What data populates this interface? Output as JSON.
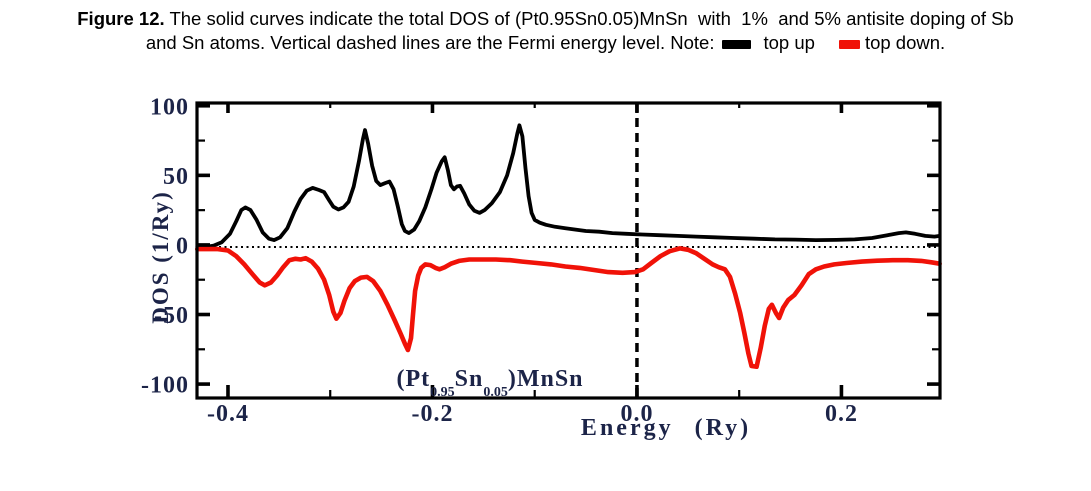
{
  "caption": {
    "line1_bold": "Figure 12.",
    "line1_rest": " The solid curves indicate the total DOS of (Pt0.95Sn0.05)MnSn  with  1%  and 5% antisite doping of Sb",
    "line2_text": "and Sn atoms. Vertical dashed lines are the Fermi energy level. Note:",
    "legend": [
      {
        "label": "top up",
        "color": "#000000"
      },
      {
        "label": "top down.",
        "color": "#f01208"
      }
    ]
  },
  "colors": {
    "spin_up_curve": "#000000",
    "spin_down_curve": "#f01208",
    "axis_text": "#1c2448",
    "axis_line": "#000000",
    "background": "#ffffff"
  },
  "chart_data": {
    "type": "line",
    "title": "",
    "xlabel": "Energy (Ry)",
    "ylabel": "DOS (1/Ry)",
    "xlim": [
      -0.4303,
      0.2964
    ],
    "ylim": [
      -110,
      102
    ],
    "grid": false,
    "x_ticks_major": [
      -0.4,
      -0.2,
      0.0,
      0.2
    ],
    "x_tick_labels": [
      "-0.4",
      "-0.2",
      "0.0",
      "0.2"
    ],
    "x_ticks_minor": [
      -0.3,
      -0.1,
      0.1
    ],
    "y_ticks_major": [
      100,
      50,
      0,
      -50,
      -100
    ],
    "y_tick_labels": [
      "100",
      "50",
      "0",
      "-50",
      "-100"
    ],
    "y_ticks_minor": [
      75,
      25,
      -25,
      -75
    ],
    "fermi_line_x": 0.0,
    "zero_line_y": -1.5,
    "annotation": {
      "prefix": "(Pt",
      "sub1": "0.95",
      "mid": "Sn",
      "sub2": "0.05",
      "suffix": ")MnSn"
    },
    "series": [
      {
        "name": "top up",
        "color": "#000000",
        "points": [
          [
            -0.43,
            -1.5
          ],
          [
            -0.422,
            -1.5
          ],
          [
            -0.414,
            -0.5
          ],
          [
            -0.406,
            2
          ],
          [
            -0.398,
            8
          ],
          [
            -0.392,
            17
          ],
          [
            -0.387,
            25
          ],
          [
            -0.383,
            27
          ],
          [
            -0.378,
            25
          ],
          [
            -0.372,
            18
          ],
          [
            -0.366,
            9
          ],
          [
            -0.36,
            4.5
          ],
          [
            -0.355,
            3.5
          ],
          [
            -0.349,
            5.5
          ],
          [
            -0.342,
            12
          ],
          [
            -0.335,
            24
          ],
          [
            -0.329,
            33
          ],
          [
            -0.323,
            39
          ],
          [
            -0.317,
            41
          ],
          [
            -0.311,
            39.5
          ],
          [
            -0.306,
            38
          ],
          [
            -0.301,
            32
          ],
          [
            -0.297,
            27.5
          ],
          [
            -0.292,
            25.5
          ],
          [
            -0.287,
            27
          ],
          [
            -0.282,
            31
          ],
          [
            -0.277,
            42
          ],
          [
            -0.272,
            60
          ],
          [
            -0.268,
            76
          ],
          [
            -0.266,
            82.5
          ],
          [
            -0.263,
            73
          ],
          [
            -0.259,
            57
          ],
          [
            -0.255,
            46
          ],
          [
            -0.251,
            43
          ],
          [
            -0.246,
            44.5
          ],
          [
            -0.242,
            45.5
          ],
          [
            -0.238,
            40
          ],
          [
            -0.234,
            28
          ],
          [
            -0.23,
            15
          ],
          [
            -0.227,
            10
          ],
          [
            -0.223,
            8.5
          ],
          [
            -0.218,
            11
          ],
          [
            -0.213,
            17
          ],
          [
            -0.207,
            27
          ],
          [
            -0.201,
            40
          ],
          [
            -0.196,
            52
          ],
          [
            -0.191,
            60
          ],
          [
            -0.188,
            63
          ],
          [
            -0.185,
            54
          ],
          [
            -0.182,
            43
          ],
          [
            -0.179,
            40
          ],
          [
            -0.176,
            42
          ],
          [
            -0.173,
            42.5
          ],
          [
            -0.169,
            37
          ],
          [
            -0.164,
            29
          ],
          [
            -0.159,
            24.5
          ],
          [
            -0.154,
            23
          ],
          [
            -0.149,
            25
          ],
          [
            -0.142,
            30
          ],
          [
            -0.134,
            38
          ],
          [
            -0.127,
            50
          ],
          [
            -0.121,
            66
          ],
          [
            -0.117,
            80
          ],
          [
            -0.115,
            86
          ],
          [
            -0.112,
            78
          ],
          [
            -0.109,
            55
          ],
          [
            -0.106,
            35
          ],
          [
            -0.103,
            23
          ],
          [
            -0.1,
            18
          ],
          [
            -0.095,
            16
          ],
          [
            -0.089,
            14.5
          ],
          [
            -0.08,
            13
          ],
          [
            -0.07,
            12
          ],
          [
            -0.06,
            11
          ],
          [
            -0.05,
            10
          ],
          [
            -0.037,
            9.5
          ],
          [
            -0.024,
            8.5
          ],
          [
            -0.01,
            8
          ],
          [
            0.005,
            7.5
          ],
          [
            0.022,
            7
          ],
          [
            0.04,
            6.5
          ],
          [
            0.058,
            6
          ],
          [
            0.076,
            5.5
          ],
          [
            0.095,
            5
          ],
          [
            0.115,
            4.5
          ],
          [
            0.135,
            4
          ],
          [
            0.155,
            3.8
          ],
          [
            0.175,
            3.5
          ],
          [
            0.195,
            3.6
          ],
          [
            0.213,
            4
          ],
          [
            0.23,
            5
          ],
          [
            0.245,
            7
          ],
          [
            0.256,
            8.5
          ],
          [
            0.263,
            9
          ],
          [
            0.272,
            8
          ],
          [
            0.282,
            6.5
          ],
          [
            0.291,
            6
          ],
          [
            0.296,
            6.5
          ]
        ]
      },
      {
        "name": "top down",
        "color": "#f01208",
        "points": [
          [
            -0.43,
            -3
          ],
          [
            -0.42,
            -3
          ],
          [
            -0.41,
            -3
          ],
          [
            -0.4,
            -4
          ],
          [
            -0.392,
            -8
          ],
          [
            -0.384,
            -14
          ],
          [
            -0.376,
            -21
          ],
          [
            -0.369,
            -27
          ],
          [
            -0.364,
            -29
          ],
          [
            -0.358,
            -27
          ],
          [
            -0.352,
            -22
          ],
          [
            -0.346,
            -16
          ],
          [
            -0.34,
            -11
          ],
          [
            -0.334,
            -10
          ],
          [
            -0.329,
            -10.5
          ],
          [
            -0.324,
            -9.5
          ],
          [
            -0.318,
            -12
          ],
          [
            -0.312,
            -17
          ],
          [
            -0.306,
            -25
          ],
          [
            -0.301,
            -36
          ],
          [
            -0.297,
            -48
          ],
          [
            -0.294,
            -53
          ],
          [
            -0.29,
            -49
          ],
          [
            -0.286,
            -40
          ],
          [
            -0.281,
            -31
          ],
          [
            -0.276,
            -26
          ],
          [
            -0.27,
            -23.5
          ],
          [
            -0.264,
            -23
          ],
          [
            -0.258,
            -26
          ],
          [
            -0.251,
            -33
          ],
          [
            -0.244,
            -43
          ],
          [
            -0.237,
            -54
          ],
          [
            -0.231,
            -64
          ],
          [
            -0.227,
            -71
          ],
          [
            -0.224,
            -75.5
          ],
          [
            -0.221,
            -67
          ],
          [
            -0.219,
            -50
          ],
          [
            -0.217,
            -33
          ],
          [
            -0.214,
            -22
          ],
          [
            -0.211,
            -16.5
          ],
          [
            -0.207,
            -14
          ],
          [
            -0.202,
            -14.5
          ],
          [
            -0.197,
            -16.5
          ],
          [
            -0.193,
            -17.5
          ],
          [
            -0.188,
            -16
          ],
          [
            -0.182,
            -13.5
          ],
          [
            -0.174,
            -11.5
          ],
          [
            -0.164,
            -10.5
          ],
          [
            -0.152,
            -10.5
          ],
          [
            -0.138,
            -10.5
          ],
          [
            -0.124,
            -11
          ],
          [
            -0.112,
            -12
          ],
          [
            -0.098,
            -13
          ],
          [
            -0.084,
            -14
          ],
          [
            -0.07,
            -15.5
          ],
          [
            -0.056,
            -16.5
          ],
          [
            -0.042,
            -18
          ],
          [
            -0.028,
            -19.5
          ],
          [
            -0.014,
            -20
          ],
          [
            -0.002,
            -19.5
          ],
          [
            0.006,
            -17.5
          ],
          [
            0.014,
            -13
          ],
          [
            0.023,
            -8
          ],
          [
            0.032,
            -4.5
          ],
          [
            0.042,
            -2.5
          ],
          [
            0.05,
            -3.5
          ],
          [
            0.058,
            -6
          ],
          [
            0.066,
            -10
          ],
          [
            0.074,
            -14
          ],
          [
            0.08,
            -16
          ],
          [
            0.086,
            -17.5
          ],
          [
            0.091,
            -23
          ],
          [
            0.096,
            -35
          ],
          [
            0.101,
            -49
          ],
          [
            0.105,
            -63
          ],
          [
            0.109,
            -78
          ],
          [
            0.112,
            -87
          ],
          [
            0.117,
            -87.5
          ],
          [
            0.121,
            -74
          ],
          [
            0.125,
            -58
          ],
          [
            0.129,
            -46
          ],
          [
            0.132,
            -43
          ],
          [
            0.136,
            -49
          ],
          [
            0.139,
            -52.5
          ],
          [
            0.143,
            -45
          ],
          [
            0.148,
            -39.5
          ],
          [
            0.154,
            -36
          ],
          [
            0.161,
            -29
          ],
          [
            0.168,
            -21
          ],
          [
            0.175,
            -17.5
          ],
          [
            0.183,
            -15.5
          ],
          [
            0.193,
            -14
          ],
          [
            0.205,
            -13
          ],
          [
            0.22,
            -12
          ],
          [
            0.235,
            -11.3
          ],
          [
            0.25,
            -11
          ],
          [
            0.265,
            -11
          ],
          [
            0.278,
            -11.5
          ],
          [
            0.288,
            -12.5
          ],
          [
            0.296,
            -13.5
          ]
        ]
      }
    ]
  }
}
